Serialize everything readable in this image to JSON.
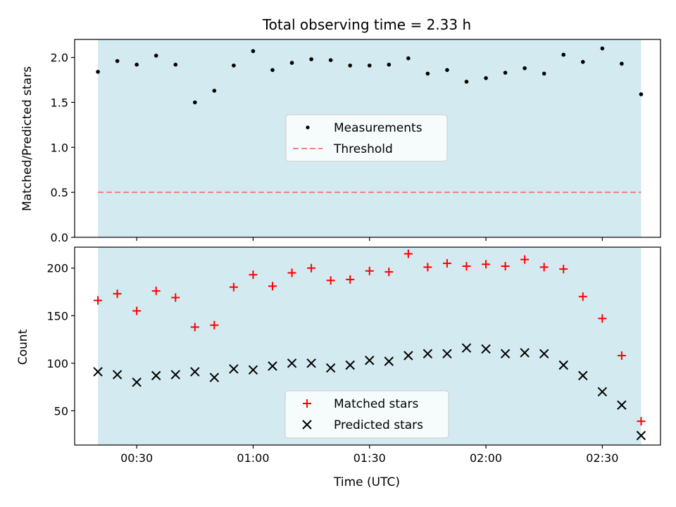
{
  "chart_data": [
    {
      "type": "scatter",
      "title": "Total observing time = 2.33 h",
      "xlabel": "",
      "ylabel": "Matched/Predicted stars",
      "ylim": [
        0,
        2.2
      ],
      "yticks": [
        "0.0",
        "0.5",
        "1.0",
        "1.5",
        "2.0"
      ],
      "xlim": [
        "00:14",
        "02:45"
      ],
      "shaded_span": [
        "00:20",
        "02:40"
      ],
      "shade_color": "#d3eaf0",
      "grid": false,
      "legend_position": "center",
      "series": [
        {
          "name": "Measurements",
          "kind": "scatter",
          "marker": "dot",
          "color": "#000000",
          "x": [
            "00:20",
            "00:25",
            "00:30",
            "00:35",
            "00:40",
            "00:45",
            "00:50",
            "00:55",
            "01:00",
            "01:05",
            "01:10",
            "01:15",
            "01:20",
            "01:25",
            "01:30",
            "01:35",
            "01:40",
            "01:45",
            "01:50",
            "01:55",
            "02:00",
            "02:05",
            "02:10",
            "02:15",
            "02:20",
            "02:25",
            "02:30",
            "02:35",
            "02:40"
          ],
          "y": [
            1.84,
            1.96,
            1.92,
            2.02,
            1.92,
            1.5,
            1.63,
            1.91,
            2.07,
            1.86,
            1.94,
            1.98,
            1.97,
            1.91,
            1.91,
            1.92,
            1.99,
            1.82,
            1.86,
            1.73,
            1.77,
            1.83,
            1.88,
            1.82,
            2.03,
            1.95,
            2.1,
            1.93,
            1.59
          ]
        },
        {
          "name": "Threshold",
          "kind": "hline",
          "style": "dashed",
          "color": "#f08080",
          "y": 0.5
        }
      ]
    },
    {
      "type": "scatter",
      "title": "",
      "xlabel": "Time (UTC)",
      "ylabel": "Count",
      "ylim": [
        14,
        222
      ],
      "yticks": [
        "50",
        "100",
        "150",
        "200"
      ],
      "xlim": [
        "00:14",
        "02:45"
      ],
      "xticks": [
        "00:30",
        "01:00",
        "01:30",
        "02:00",
        "02:30"
      ],
      "shaded_span": [
        "00:20",
        "02:40"
      ],
      "shade_color": "#d3eaf0",
      "grid": false,
      "legend_position": "lower center",
      "series": [
        {
          "name": "Matched stars",
          "kind": "scatter",
          "marker": "plus",
          "color": "#ff0000",
          "x": [
            "00:20",
            "00:25",
            "00:30",
            "00:35",
            "00:40",
            "00:45",
            "00:50",
            "00:55",
            "01:00",
            "01:05",
            "01:10",
            "01:15",
            "01:20",
            "01:25",
            "01:30",
            "01:35",
            "01:40",
            "01:45",
            "01:50",
            "01:55",
            "02:00",
            "02:05",
            "02:10",
            "02:15",
            "02:20",
            "02:25",
            "02:30",
            "02:35",
            "02:40"
          ],
          "y": [
            166,
            173,
            155,
            176,
            169,
            138,
            140,
            180,
            193,
            181,
            195,
            200,
            187,
            188,
            197,
            196,
            215,
            201,
            205,
            202,
            204,
            202,
            209,
            201,
            199,
            170,
            147,
            108,
            39
          ]
        },
        {
          "name": "Predicted stars",
          "kind": "scatter",
          "marker": "x",
          "color": "#000000",
          "x": [
            "00:20",
            "00:25",
            "00:30",
            "00:35",
            "00:40",
            "00:45",
            "00:50",
            "00:55",
            "01:00",
            "01:05",
            "01:10",
            "01:15",
            "01:20",
            "01:25",
            "01:30",
            "01:35",
            "01:40",
            "01:45",
            "01:50",
            "01:55",
            "02:00",
            "02:05",
            "02:10",
            "02:15",
            "02:20",
            "02:25",
            "02:30",
            "02:35",
            "02:40"
          ],
          "y": [
            91,
            88,
            80,
            87,
            88,
            91,
            85,
            94,
            93,
            97,
            100,
            100,
            95,
            98,
            103,
            102,
            108,
            110,
            110,
            116,
            115,
            110,
            111,
            110,
            98,
            87,
            70,
            56,
            24
          ]
        }
      ]
    }
  ]
}
